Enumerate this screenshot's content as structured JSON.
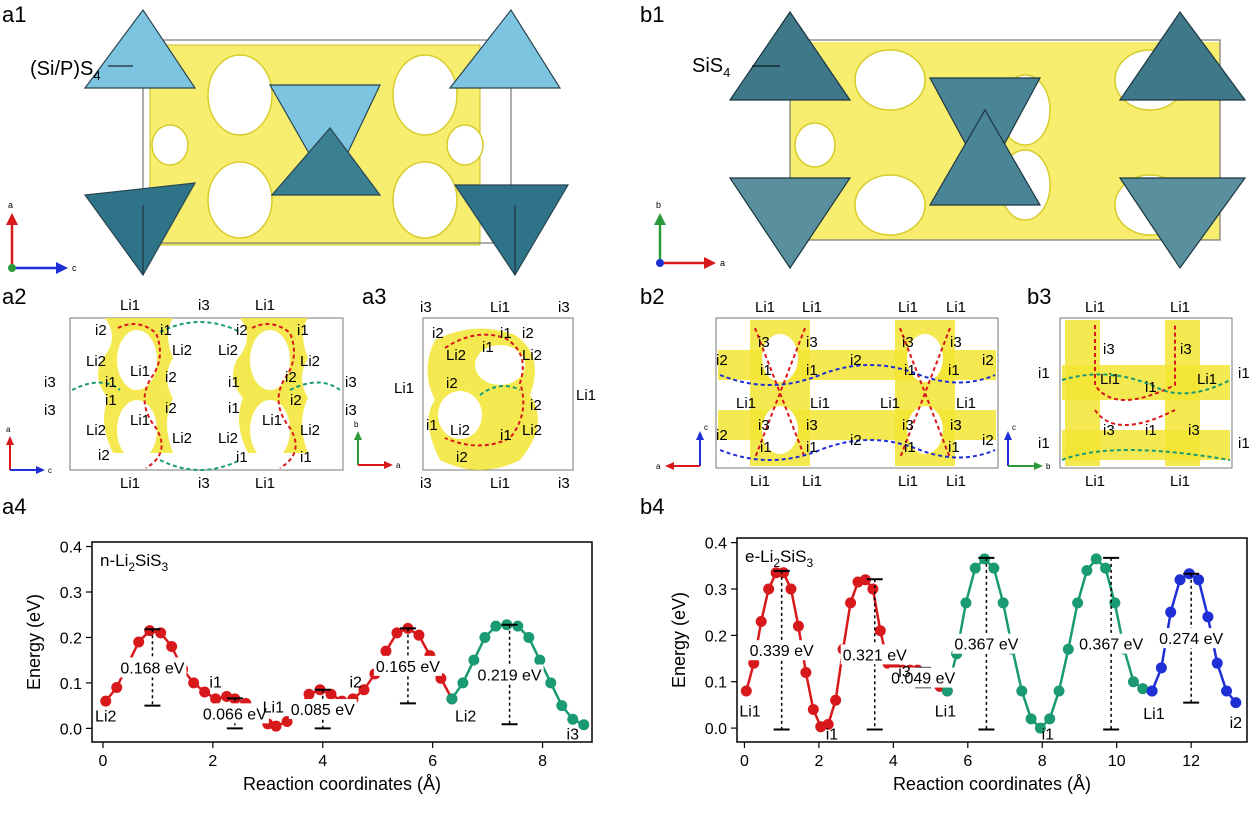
{
  "panels": {
    "a1": "a1",
    "b1": "b1",
    "a2": "a2",
    "a3": "a3",
    "b2": "b2",
    "b3": "b3",
    "a4": "a4",
    "b4": "b4"
  },
  "annotations": {
    "a1_tetra": "(Si/P)S",
    "a1_tetra_sub": "4",
    "b1_tetra": "SiS",
    "b1_tetra_sub": "4"
  },
  "axes_triads": {
    "a1": [
      "a",
      "c"
    ],
    "b1": [
      "b",
      "a"
    ],
    "a2": [
      "a",
      "c"
    ],
    "a3": [
      "b",
      "a"
    ],
    "b2": [
      "c",
      "a"
    ],
    "b3": [
      "c",
      "b"
    ]
  },
  "site_labels": {
    "a2": [
      "Li1",
      "i3",
      "Li1",
      "i2",
      "i1",
      "i2",
      "i1",
      "Li2",
      "Li2",
      "Li1",
      "Li2",
      "Li2",
      "i3",
      "i1",
      "i2",
      "i1",
      "i2",
      "i3",
      "i3",
      "i1",
      "i2",
      "i1",
      "i2",
      "i3",
      "Li1",
      "Li1",
      "Li2",
      "Li2",
      "Li2",
      "Li2",
      "i2",
      "i1",
      "i1",
      "Li1",
      "i3",
      "Li1"
    ],
    "a3": [
      "i3",
      "Li1",
      "i3",
      "i2",
      "i1",
      "i2",
      "Li2",
      "Li2",
      "i1",
      "Li1",
      "i2",
      "Li1",
      "i2",
      "i1",
      "Li2",
      "i1",
      "Li2",
      "i2",
      "i3",
      "Li1",
      "i3"
    ],
    "b2": [
      "Li1",
      "Li1",
      "Li1",
      "Li1",
      "i3",
      "i3",
      "i3",
      "i3",
      "i2",
      "i1",
      "i1",
      "i2",
      "i1",
      "i1",
      "i2",
      "Li1",
      "Li1",
      "Li1",
      "Li1",
      "i3",
      "i3",
      "i3",
      "i3",
      "i2",
      "i1",
      "i1",
      "i2",
      "i1",
      "i1",
      "i2",
      "Li1",
      "Li1",
      "Li1",
      "Li1"
    ],
    "b3": [
      "Li1",
      "Li1",
      "i3",
      "i3",
      "i1",
      "Li1",
      "i1",
      "Li1",
      "i1",
      "i3",
      "i1",
      "i3",
      "i1",
      "i1",
      "Li1",
      "Li1"
    ]
  },
  "chart_data": [
    {
      "type": "line",
      "panel": "a4",
      "title": "n-Li2SiS3",
      "title_main": "n-Li",
      "title_sub1": "2",
      "title_mid": "SiS",
      "title_sub2": "3",
      "xlabel": "Reaction coordinates (Å)",
      "ylabel": "Energy (eV)",
      "xlim": [
        -0.2,
        8.9
      ],
      "ylim": [
        -0.03,
        0.41
      ],
      "xticks": [
        0,
        2,
        4,
        6,
        8
      ],
      "yticks": [
        0.0,
        0.1,
        0.2,
        0.3,
        0.4
      ],
      "xtick_labels": [
        "0",
        "2",
        "4",
        "6",
        "8"
      ],
      "ytick_labels": [
        "0.0",
        "0.1",
        "0.2",
        "0.3",
        "0.4"
      ],
      "series": [
        {
          "color": "#d7191c",
          "x": [
            0.05,
            0.25,
            0.45,
            0.65,
            0.85,
            1.05,
            1.25,
            1.45,
            1.65,
            1.85,
            2.05,
            2.25,
            2.4,
            2.6,
            2.8,
            3.0,
            3.15,
            3.35,
            3.55,
            3.75,
            3.95,
            4.15,
            4.35,
            4.55,
            4.75,
            4.95,
            5.15,
            5.35,
            5.55,
            5.75,
            5.95,
            6.15,
            6.35
          ],
          "y": [
            0.06,
            0.09,
            0.14,
            0.19,
            0.215,
            0.21,
            0.18,
            0.13,
            0.1,
            0.08,
            0.065,
            0.07,
            0.065,
            0.055,
            0.03,
            0.01,
            0.005,
            0.015,
            0.045,
            0.075,
            0.085,
            0.075,
            0.06,
            0.065,
            0.085,
            0.12,
            0.17,
            0.21,
            0.22,
            0.205,
            0.16,
            0.11,
            0.065
          ]
        },
        {
          "color": "#1a9a72",
          "x": [
            6.35,
            6.55,
            6.75,
            6.95,
            7.15,
            7.35,
            7.55,
            7.75,
            7.95,
            8.15,
            8.35,
            8.55,
            8.75
          ],
          "y": [
            0.065,
            0.1,
            0.15,
            0.2,
            0.225,
            0.228,
            0.225,
            0.2,
            0.15,
            0.1,
            0.05,
            0.02,
            0.008
          ]
        }
      ],
      "barriers": [
        {
          "x": 0.9,
          "top": 0.218,
          "bottom": 0.05,
          "label": "0.168 eV"
        },
        {
          "x": 2.4,
          "top": 0.066,
          "bottom": 0.0,
          "label": "0.066 eV"
        },
        {
          "x": 4.0,
          "top": 0.085,
          "bottom": 0.0,
          "label": "0.085 eV"
        },
        {
          "x": 5.55,
          "top": 0.22,
          "bottom": 0.055,
          "label": "0.165 eV"
        },
        {
          "x": 7.4,
          "top": 0.228,
          "bottom": 0.009,
          "label": "0.219 eV"
        }
      ],
      "site_marks": [
        {
          "x": 0.05,
          "y": 0.015,
          "label": "Li2"
        },
        {
          "x": 2.05,
          "y": 0.09,
          "label": "i1"
        },
        {
          "x": 3.1,
          "y": 0.035,
          "label": "Li1"
        },
        {
          "x": 4.6,
          "y": 0.09,
          "label": "i2"
        },
        {
          "x": 6.6,
          "y": 0.015,
          "label": "Li2"
        },
        {
          "x": 8.55,
          "y": -0.025,
          "label": "i3"
        }
      ]
    },
    {
      "type": "line",
      "panel": "b4",
      "title": "e-Li2SiS3",
      "title_main": "e-Li",
      "title_sub1": "2",
      "title_mid": "SiS",
      "title_sub2": "3",
      "xlabel": "Reaction coordinates (Å)",
      "ylabel": "Energy (eV)",
      "xlim": [
        -0.2,
        13.5
      ],
      "ylim": [
        -0.03,
        0.41
      ],
      "xticks": [
        0,
        2,
        4,
        6,
        8,
        10,
        12
      ],
      "yticks": [
        0.0,
        0.1,
        0.2,
        0.3,
        0.4
      ],
      "xtick_labels": [
        "0",
        "2",
        "4",
        "6",
        "8",
        "10",
        "12"
      ],
      "ytick_labels": [
        "0.0",
        "0.1",
        "0.2",
        "0.3",
        "0.4"
      ],
      "series": [
        {
          "color": "#d7191c",
          "x": [
            0.05,
            0.25,
            0.45,
            0.65,
            0.85,
            1.05,
            1.25,
            1.45,
            1.65,
            1.85,
            2.05,
            2.25,
            2.45,
            2.65,
            2.85,
            3.05,
            3.25,
            3.45,
            3.65,
            3.85,
            4.05,
            4.25,
            4.45,
            4.65,
            4.85,
            5.05,
            5.25,
            5.45
          ],
          "y": [
            0.08,
            0.14,
            0.23,
            0.3,
            0.335,
            0.335,
            0.3,
            0.22,
            0.12,
            0.04,
            0.003,
            0.008,
            0.06,
            0.17,
            0.27,
            0.315,
            0.32,
            0.3,
            0.21,
            0.14,
            0.13,
            0.125,
            0.125,
            0.125,
            0.11,
            0.1,
            0.09,
            0.08
          ]
        },
        {
          "color": "#1a9a72",
          "x": [
            5.45,
            5.7,
            5.95,
            6.2,
            6.45,
            6.7,
            6.95,
            7.2,
            7.45,
            7.7,
            7.95,
            8.2,
            8.45,
            8.7,
            8.95,
            9.2,
            9.45,
            9.7,
            9.95,
            10.2,
            10.45,
            10.7,
            10.95
          ],
          "y": [
            0.08,
            0.16,
            0.27,
            0.345,
            0.365,
            0.345,
            0.27,
            0.17,
            0.08,
            0.02,
            0.0,
            0.02,
            0.08,
            0.17,
            0.27,
            0.34,
            0.365,
            0.345,
            0.27,
            0.17,
            0.1,
            0.085,
            0.08
          ]
        },
        {
          "color": "#1f2fd6",
          "x": [
            10.95,
            11.2,
            11.45,
            11.7,
            11.95,
            12.2,
            12.45,
            12.7,
            12.95,
            13.2
          ],
          "y": [
            0.08,
            0.13,
            0.25,
            0.32,
            0.333,
            0.32,
            0.24,
            0.14,
            0.08,
            0.055
          ]
        }
      ],
      "barriers": [
        {
          "x": 1.0,
          "top": 0.339,
          "bottom": -0.003,
          "label": "0.339 eV"
        },
        {
          "x": 3.5,
          "top": 0.321,
          "bottom": -0.003,
          "label": "0.321 eV"
        },
        {
          "x": 4.8,
          "top": 0.13,
          "bottom": 0.088,
          "label": "0.049 eV"
        },
        {
          "x": 6.5,
          "top": 0.367,
          "bottom": -0.003,
          "label": "0.367 eV"
        },
        {
          "x": 9.85,
          "top": 0.367,
          "bottom": -0.003,
          "label": "0.367 eV"
        },
        {
          "x": 12.0,
          "top": 0.333,
          "bottom": 0.055,
          "label": "0.274 eV"
        }
      ],
      "site_marks": [
        {
          "x": 0.15,
          "y": 0.025,
          "label": "Li1"
        },
        {
          "x": 2.35,
          "y": -0.025,
          "label": "i1"
        },
        {
          "x": 4.3,
          "y": 0.11,
          "label": "i3"
        },
        {
          "x": 5.4,
          "y": 0.025,
          "label": "Li1"
        },
        {
          "x": 8.15,
          "y": -0.025,
          "label": "i1"
        },
        {
          "x": 11.0,
          "y": 0.02,
          "label": "Li1"
        },
        {
          "x": 13.2,
          "y": 0.0,
          "label": "i2"
        }
      ]
    }
  ]
}
